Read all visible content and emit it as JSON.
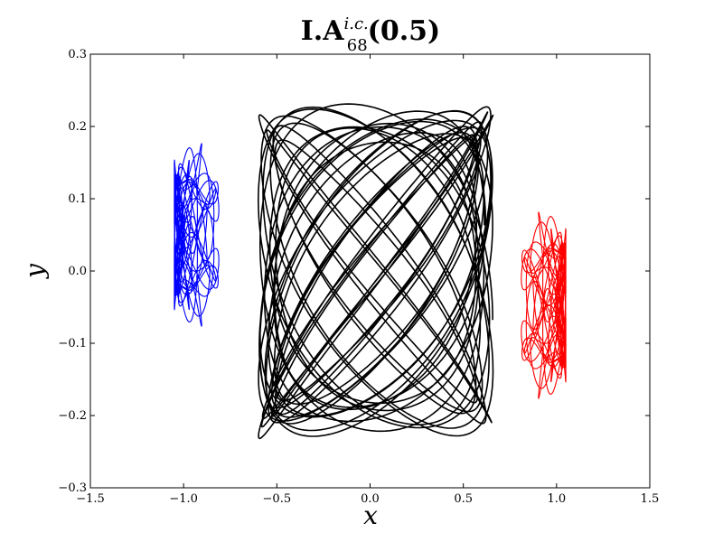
{
  "chart_data": {
    "type": "line",
    "title": {
      "main": "I.A",
      "superscript": "i.c.",
      "subscript": "68",
      "suffix": "(0.5)"
    },
    "xlabel": "x",
    "ylabel": "y",
    "xlim": [
      -1.5,
      1.5
    ],
    "ylim": [
      -0.3,
      0.3
    ],
    "xticks": [
      -1.5,
      -1.0,
      -0.5,
      0.0,
      0.5,
      1.0,
      1.5
    ],
    "yticks": [
      -0.3,
      -0.2,
      -0.1,
      0.0,
      0.1,
      0.2,
      0.3
    ],
    "xtick_labels": [
      "−1.5",
      "−1.0",
      "−0.5",
      "0.0",
      "0.5",
      "1.0",
      "1.5"
    ],
    "ytick_labels": [
      "−0.3",
      "−0.2",
      "−0.1",
      "0.0",
      "0.1",
      "0.2",
      "0.3"
    ],
    "grid": false,
    "series": [
      {
        "color": "#000000",
        "shape": "central-body",
        "x_range": [
          -0.62,
          0.68
        ],
        "y_range": [
          -0.22,
          0.22
        ]
      },
      {
        "color": "#0000ff",
        "shape": "left-lobes",
        "x_range": [
          -1.05,
          -0.55
        ],
        "y_range": [
          -0.13,
          0.21
        ]
      },
      {
        "color": "#ff0000",
        "shape": "right-lobes",
        "x_range": [
          0.55,
          1.05
        ],
        "y_range": [
          -0.21,
          0.13
        ]
      }
    ]
  }
}
